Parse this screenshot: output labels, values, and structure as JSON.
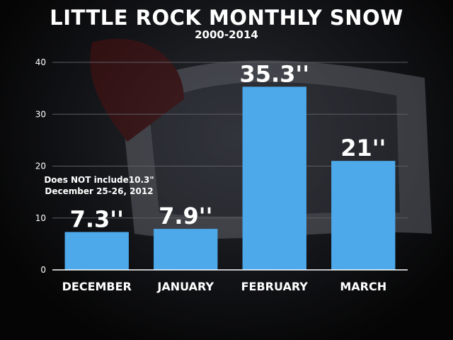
{
  "chart_data": {
    "type": "bar",
    "title": "LITTLE ROCK MONTHLY SNOW",
    "subtitle": "2000-2014",
    "categories": [
      "DECEMBER",
      "JANUARY",
      "FEBRUARY",
      "MARCH"
    ],
    "values": [
      7.3,
      7.9,
      35.3,
      21
    ],
    "data_labels": [
      "7.3''",
      "7.9''",
      "35.3''",
      "21''"
    ],
    "yticks": [
      0,
      10,
      20,
      30,
      40
    ],
    "ylim": [
      0,
      40
    ],
    "grid": true,
    "bar_color": "#4da9ea",
    "annotation": {
      "line1": "Does NOT include10.3\"",
      "line2": "December 25-26, 2012"
    }
  }
}
